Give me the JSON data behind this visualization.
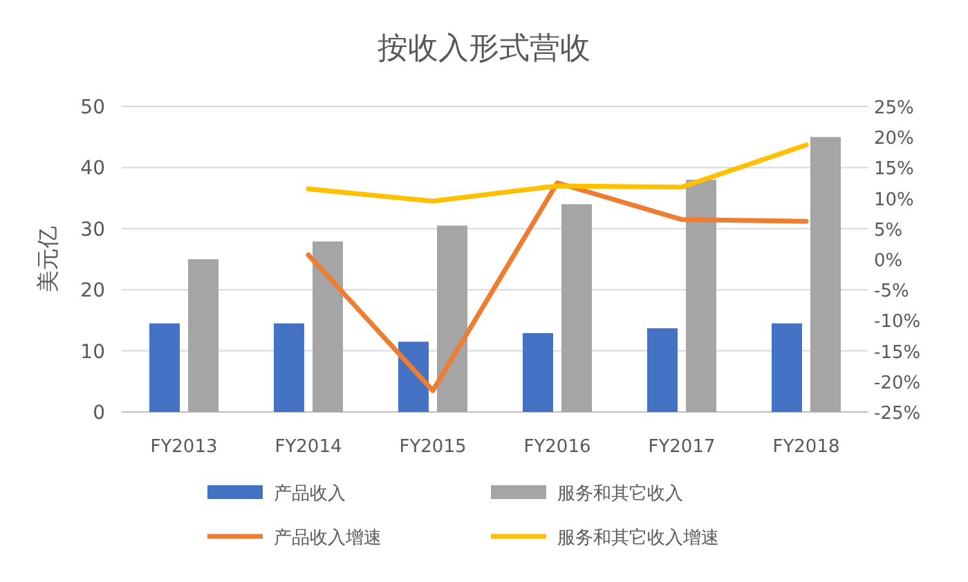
{
  "chart_data": {
    "type": "bar",
    "title": "按收入形式营收",
    "ylabel": "美元亿",
    "categories": [
      "FY2013",
      "FY2014",
      "FY2015",
      "FY2016",
      "FY2017",
      "FY2018"
    ],
    "series": [
      {
        "name": "产品收入",
        "color": "#4472c4",
        "values": [
          14.5,
          14.5,
          11.5,
          12.9,
          13.7,
          14.5
        ]
      },
      {
        "name": "服务和其它收入",
        "color": "#a5a5a5",
        "values": [
          25,
          27.9,
          30.5,
          34,
          38,
          45
        ]
      },
      {
        "name": "产品收入增速",
        "type": "line",
        "axis": "y2",
        "color": "#ed7d31",
        "values": [
          null,
          0.7,
          -21.5,
          12.5,
          6.5,
          6.2
        ]
      },
      {
        "name": "服务和其它收入增速",
        "type": "line",
        "axis": "y2",
        "color": "#ffc000",
        "values": [
          null,
          11.5,
          9.5,
          12,
          11.8,
          18.7
        ]
      }
    ],
    "ylim": [
      0,
      50
    ],
    "yticks": [
      0,
      10,
      20,
      30,
      40,
      50
    ],
    "y2lim": [
      -25,
      25
    ],
    "y2ticks": [
      {
        "value": -25,
        "label": "-25%"
      },
      {
        "value": -20,
        "label": "-20%"
      },
      {
        "value": -15,
        "label": "-15%"
      },
      {
        "value": -10,
        "label": "-10%"
      },
      {
        "value": -5,
        "label": "-5%"
      },
      {
        "value": 0,
        "label": "0%"
      },
      {
        "value": 5,
        "label": "5%"
      },
      {
        "value": 10,
        "label": "10%"
      },
      {
        "value": 15,
        "label": "15%"
      },
      {
        "value": 20,
        "label": "20%"
      },
      {
        "value": 25,
        "label": "25%"
      }
    ],
    "grid": "y",
    "legend": "bottom"
  }
}
